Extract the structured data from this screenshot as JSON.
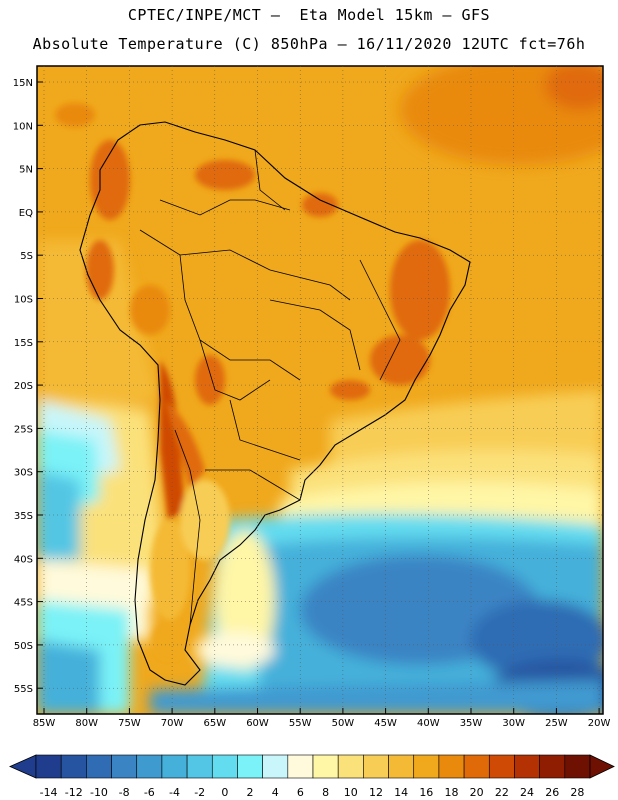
{
  "header": {
    "line1": "CPTEC/INPE/MCT –  Eta Model 15km – GFS",
    "line2": "Absolute Temperature (C) 850hPa – 16/11/2020 12UTC fct=76h"
  },
  "map": {
    "lat_labels": [
      "15N",
      "10N",
      "5N",
      "EQ",
      "5S",
      "10S",
      "15S",
      "20S",
      "25S",
      "30S",
      "35S",
      "40S",
      "45S",
      "50S",
      "55S"
    ],
    "lon_labels": [
      "85W",
      "80W",
      "75W",
      "70W",
      "65W",
      "60W",
      "55W",
      "50W",
      "45W",
      "40W",
      "35W",
      "30W",
      "25W",
      "20W"
    ]
  },
  "colorbar": {
    "labels": [
      "-14",
      "-12",
      "-10",
      "-8",
      "-6",
      "-4",
      "-2",
      "0",
      "2",
      "4",
      "6",
      "8",
      "10",
      "12",
      "14",
      "16",
      "18",
      "20",
      "22",
      "24",
      "26",
      "28"
    ],
    "colors": [
      "#1f3d8c",
      "#2754a0",
      "#2f6cb3",
      "#3a84c4",
      "#3f9ad0",
      "#45b0da",
      "#52c6e4",
      "#63dcef",
      "#7af2f7",
      "#c8f6fa",
      "#fffadb",
      "#fff6a6",
      "#fbe17a",
      "#f8cd55",
      "#f4ba36",
      "#f0a81c",
      "#e98a0c",
      "#e06a07",
      "#cf4a04",
      "#b43103",
      "#8e1d02",
      "#6e1102"
    ]
  }
}
